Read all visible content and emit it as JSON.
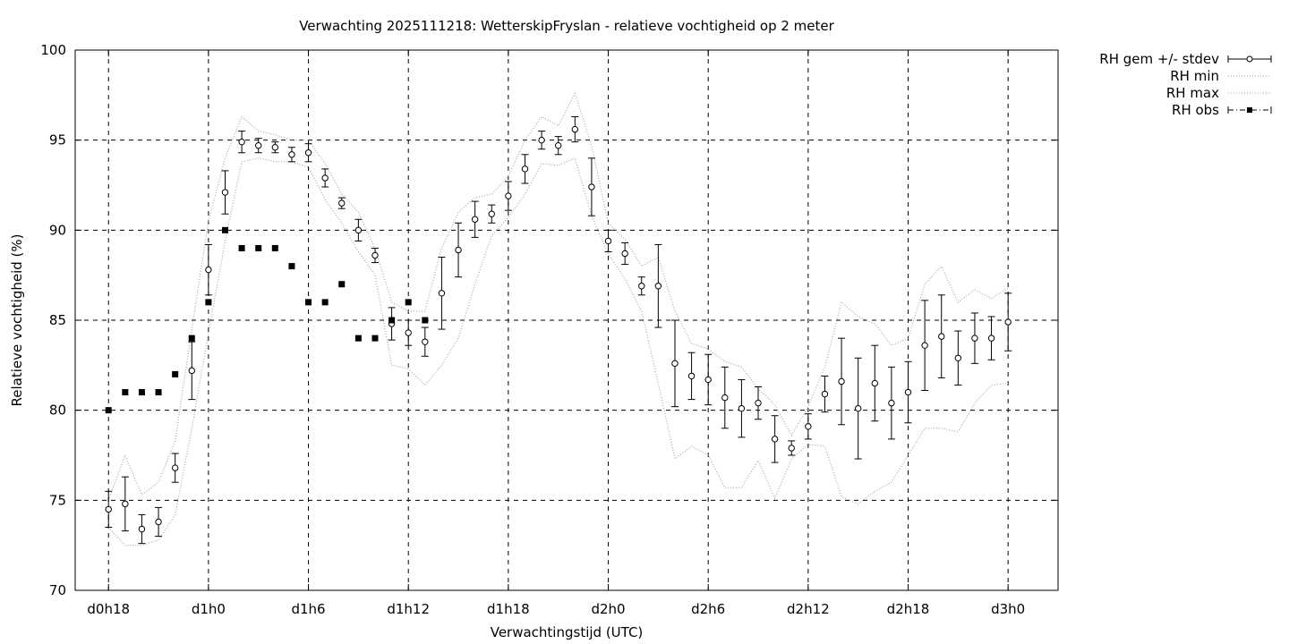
{
  "chart_data": {
    "type": "line",
    "title": "Verwachting 2025111218: WetterskipFryslan - relatieve vochtigheid op 2 meter",
    "xlabel": "Verwachtingstijd (UTC)",
    "ylabel": "Relatieve vochtigheid (%)",
    "x_unit": "hours since d0h0",
    "xlim": [
      16,
      75
    ],
    "ylim": [
      70,
      100
    ],
    "grid": true,
    "legend_position": "outside-top-right",
    "x_ticks": [
      {
        "value": 18,
        "label": "d0h18"
      },
      {
        "value": 24,
        "label": "d1h0"
      },
      {
        "value": 30,
        "label": "d1h6"
      },
      {
        "value": 36,
        "label": "d1h12"
      },
      {
        "value": 42,
        "label": "d1h18"
      },
      {
        "value": 48,
        "label": "d2h0"
      },
      {
        "value": 54,
        "label": "d2h6"
      },
      {
        "value": 60,
        "label": "d2h12"
      },
      {
        "value": 66,
        "label": "d2h18"
      },
      {
        "value": 72,
        "label": "d3h0"
      }
    ],
    "y_ticks": [
      {
        "value": 70,
        "label": "70"
      },
      {
        "value": 75,
        "label": "75"
      },
      {
        "value": 80,
        "label": "80"
      },
      {
        "value": 85,
        "label": "85"
      },
      {
        "value": 90,
        "label": "90"
      },
      {
        "value": 95,
        "label": "95"
      },
      {
        "value": 100,
        "label": "100"
      }
    ],
    "legend": [
      {
        "label": "RH gem +/- stdev",
        "style": "errorbar"
      },
      {
        "label": "RH min",
        "style": "dotted"
      },
      {
        "label": "RH max",
        "style": "dotted"
      },
      {
        "label": "RH obs",
        "style": "dash-dot-square"
      }
    ],
    "series": [
      {
        "name": "RH gem +/- stdev",
        "x": [
          18,
          19,
          20,
          21,
          22,
          23,
          24,
          25,
          26,
          27,
          28,
          29,
          30,
          31,
          32,
          33,
          34,
          35,
          36,
          37,
          38,
          39,
          40,
          41,
          42,
          43,
          44,
          45,
          46,
          47,
          48,
          49,
          50,
          51,
          52,
          53,
          54,
          55,
          56,
          57,
          58,
          59,
          60,
          61,
          62,
          63,
          64,
          65,
          66,
          67,
          68,
          69,
          70,
          71,
          72
        ],
        "mean": [
          74.5,
          74.8,
          73.4,
          73.8,
          76.8,
          82.2,
          87.8,
          92.1,
          94.9,
          94.7,
          94.6,
          94.2,
          94.3,
          92.9,
          91.5,
          90.0,
          88.6,
          84.8,
          84.3,
          83.8,
          86.5,
          88.9,
          90.6,
          90.9,
          91.9,
          93.4,
          95.0,
          94.7,
          95.6,
          92.4,
          89.4,
          88.7,
          86.9,
          86.9,
          82.6,
          81.9,
          81.7,
          80.7,
          80.1,
          80.4,
          78.4,
          77.9,
          79.1,
          80.9,
          81.6,
          80.1,
          81.5,
          80.4,
          81.0,
          83.6,
          84.1,
          82.9,
          84.0,
          84.0,
          84.9
        ],
        "stdev": [
          1.0,
          1.5,
          0.8,
          0.8,
          0.8,
          1.6,
          1.4,
          1.2,
          0.6,
          0.4,
          0.3,
          0.4,
          0.5,
          0.5,
          0.3,
          0.6,
          0.4,
          0.9,
          0.7,
          0.8,
          2.0,
          1.5,
          1.0,
          0.5,
          0.8,
          0.8,
          0.5,
          0.5,
          0.7,
          1.6,
          0.6,
          0.6,
          0.5,
          2.3,
          2.4,
          1.3,
          1.4,
          1.7,
          1.6,
          0.9,
          1.3,
          0.4,
          0.7,
          1.0,
          2.4,
          2.8,
          2.1,
          2.0,
          1.7,
          2.5,
          2.3,
          1.5,
          1.4,
          1.2,
          1.6
        ]
      },
      {
        "name": "RH min",
        "x": [
          18,
          19,
          20,
          21,
          22,
          23,
          24,
          25,
          26,
          27,
          28,
          29,
          30,
          31,
          32,
          33,
          34,
          35,
          36,
          37,
          38,
          39,
          40,
          41,
          42,
          43,
          44,
          45,
          46,
          47,
          48,
          49,
          50,
          51,
          52,
          53,
          54,
          55,
          56,
          57,
          58,
          59,
          60,
          61,
          62,
          63,
          64,
          65,
          66,
          67,
          68,
          69,
          70,
          71,
          72
        ],
        "values": [
          73.5,
          72.5,
          72.5,
          72.8,
          74.2,
          79.0,
          84.3,
          89.4,
          93.8,
          94.0,
          93.8,
          93.8,
          93.5,
          91.7,
          90.4,
          88.8,
          87.5,
          82.5,
          82.3,
          81.4,
          82.5,
          84.0,
          87.0,
          89.7,
          90.7,
          92.0,
          93.7,
          93.6,
          94.0,
          90.8,
          88.7,
          87.3,
          85.5,
          81.5,
          77.3,
          78.0,
          77.5,
          75.7,
          75.7,
          77.2,
          75.1,
          77.3,
          78.1,
          78.0,
          75.2,
          74.8,
          75.5,
          76.0,
          77.5,
          79.0,
          79.0,
          78.8,
          80.4,
          81.4,
          81.5
        ]
      },
      {
        "name": "RH max",
        "x": [
          18,
          19,
          20,
          21,
          22,
          23,
          24,
          25,
          26,
          27,
          28,
          29,
          30,
          31,
          32,
          33,
          34,
          35,
          36,
          37,
          38,
          39,
          40,
          41,
          42,
          43,
          44,
          45,
          46,
          47,
          48,
          49,
          50,
          51,
          52,
          53,
          54,
          55,
          56,
          57,
          58,
          59,
          60,
          61,
          62,
          63,
          64,
          65,
          66,
          67,
          68,
          69,
          70,
          71,
          72
        ],
        "values": [
          75.0,
          77.5,
          75.3,
          76.0,
          78.3,
          84.5,
          90.5,
          94.0,
          96.3,
          95.5,
          95.3,
          95.0,
          95.0,
          93.7,
          92.0,
          91.0,
          89.0,
          86.0,
          85.5,
          85.5,
          89.0,
          91.0,
          91.8,
          92.0,
          93.0,
          95.0,
          96.3,
          95.8,
          97.6,
          94.7,
          90.4,
          89.5,
          88.0,
          88.5,
          85.5,
          83.7,
          83.4,
          82.7,
          82.4,
          81.2,
          80.3,
          78.6,
          80.2,
          82.4,
          86.0,
          85.2,
          84.8,
          83.6,
          84.0,
          87.0,
          88.0,
          86.0,
          86.7,
          86.2,
          86.8
        ]
      },
      {
        "name": "RH obs",
        "x": [
          18,
          19,
          20,
          21,
          22,
          23,
          24,
          25,
          26,
          27,
          28,
          29,
          30,
          31,
          32,
          33,
          34,
          35,
          36,
          37
        ],
        "values": [
          80,
          81,
          81,
          81,
          82,
          84,
          86,
          90,
          89,
          89,
          89,
          88,
          86,
          86,
          87,
          84,
          84,
          85,
          86,
          85
        ]
      }
    ]
  }
}
